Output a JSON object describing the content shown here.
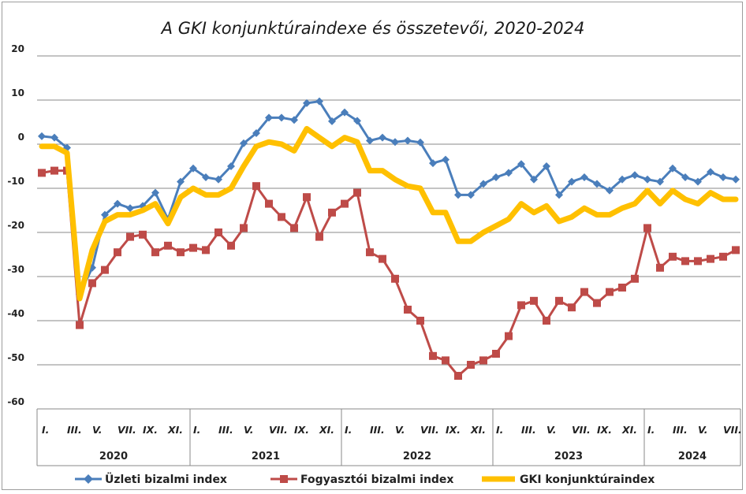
{
  "chart_data": {
    "type": "line",
    "title": "A GKI konjunktúraindexe és összetevői, 2020-2024",
    "ylim": [
      -60,
      20
    ],
    "yticks": [
      20,
      10,
      0,
      -10,
      -20,
      -30,
      -40,
      -50,
      -60
    ],
    "grid": true,
    "legend_position": "bottom",
    "month_labels": [
      "I.",
      "III.",
      "V.",
      "VII.",
      "IX.",
      "XI.",
      "I.",
      "III.",
      "V.",
      "VII.",
      "IX.",
      "XI.",
      "I.",
      "III.",
      "V.",
      "VII.",
      "IX.",
      "XI.",
      "I.",
      "III.",
      "V.",
      "VII.",
      "IX.",
      "XI.",
      "I.",
      "III.",
      "V.",
      "VII."
    ],
    "years": [
      "2020",
      "2021",
      "2022",
      "2023",
      "2024"
    ],
    "x": [
      "2020-01",
      "2020-02",
      "2020-03",
      "2020-04",
      "2020-05",
      "2020-06",
      "2020-07",
      "2020-08",
      "2020-09",
      "2020-10",
      "2020-11",
      "2020-12",
      "2021-01",
      "2021-02",
      "2021-03",
      "2021-04",
      "2021-05",
      "2021-06",
      "2021-07",
      "2021-08",
      "2021-09",
      "2021-10",
      "2021-11",
      "2021-12",
      "2022-01",
      "2022-02",
      "2022-03",
      "2022-04",
      "2022-05",
      "2022-06",
      "2022-07",
      "2022-08",
      "2022-09",
      "2022-10",
      "2022-11",
      "2022-12",
      "2023-01",
      "2023-02",
      "2023-03",
      "2023-04",
      "2023-05",
      "2023-06",
      "2023-07",
      "2023-08",
      "2023-09",
      "2023-10",
      "2023-11",
      "2023-12",
      "2024-01",
      "2024-02",
      "2024-03",
      "2024-04",
      "2024-05",
      "2024-06",
      "2024-07",
      "2024-08"
    ],
    "series": [
      {
        "name": "Üzleti bizalmi index",
        "color": "#4a7ebb",
        "marker": "diamond",
        "values": [
          1.8,
          1.5,
          -0.8,
          -34,
          -28,
          -16,
          -13.5,
          -14.5,
          -14,
          -11,
          -17,
          -8.5,
          -5.5,
          -7.5,
          -8,
          -5,
          0.2,
          2.5,
          6,
          6,
          5.5,
          9.3,
          9.7,
          5.2,
          7.2,
          5.3,
          0.8,
          1.5,
          0.5,
          0.8,
          0.4,
          -4.3,
          -3.5,
          -11.5,
          -11.5,
          -9,
          -7.5,
          -6.5,
          -4.5,
          -8,
          -5,
          -11.5,
          -8.5,
          -7.5,
          -9,
          -10.5,
          -8,
          -7,
          -8,
          -8.5,
          -5.5,
          -7.5,
          -8.5,
          -6.3,
          -7.5,
          -8
        ]
      },
      {
        "name": "Fogyasztói bizalmi index",
        "color": "#be4b48",
        "marker": "square",
        "values": [
          -6.5,
          -6,
          -6,
          -41,
          -31.5,
          -28.5,
          -24.5,
          -21,
          -20.5,
          -24.5,
          -23,
          -24.5,
          -23.5,
          -24,
          -20,
          -23,
          -19,
          -9.5,
          -13.5,
          -16.5,
          -19,
          -12,
          -21,
          -15.5,
          -13.5,
          -11,
          -24.5,
          -26,
          -30.5,
          -37.5,
          -40,
          -48,
          -49,
          -52.5,
          -50,
          -49,
          -47.5,
          -43.5,
          -36.5,
          -35.5,
          -40,
          -35.5,
          -37,
          -33.5,
          -36,
          -33.5,
          -32.5,
          -30.5,
          -19,
          -28,
          -25.5,
          -26.5,
          -26.5,
          -26,
          -25.5,
          -24
        ]
      },
      {
        "name": "GKI konjunktúraindex",
        "color": "#ffc000",
        "marker": "none",
        "values": [
          -0.5,
          -0.5,
          -2,
          -35,
          -24,
          -17.5,
          -16,
          -16,
          -15,
          -13.5,
          -18,
          -12,
          -10,
          -11.5,
          -11.5,
          -10,
          -5,
          -0.5,
          0.5,
          0,
          -1.5,
          3.5,
          1.5,
          -0.5,
          1.5,
          0.5,
          -6,
          -6,
          -8,
          -9.5,
          -10,
          -15.5,
          -15.5,
          -22,
          -22,
          -20,
          -18.5,
          -17,
          -13.5,
          -15.5,
          -14,
          -17.5,
          -16.5,
          -14.5,
          -16,
          -16,
          -14.5,
          -13.5,
          -10.5,
          -13.5,
          -10.5,
          -12.5,
          -13.5,
          -11,
          -12.5,
          -12.5
        ]
      }
    ]
  },
  "legend": {
    "business_label": "Üzleti bizalmi index",
    "consumer_label": "Fogyasztói bizalmi index",
    "gki_label": "GKI konjunktúraindex"
  }
}
